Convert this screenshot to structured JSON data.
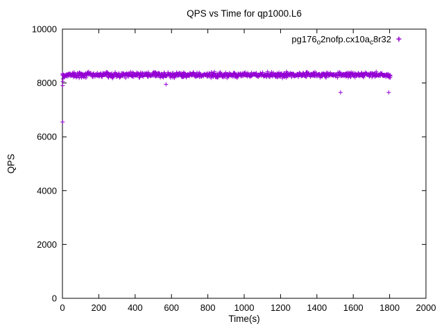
{
  "chart_data": {
    "type": "scatter",
    "title": "QPS vs Time for qp1000.L6",
    "xlabel": "Time(s)",
    "ylabel": "QPS",
    "xlim": [
      0,
      2000
    ],
    "ylim": [
      0,
      10000
    ],
    "xticks": [
      0,
      200,
      400,
      600,
      800,
      1000,
      1200,
      1400,
      1600,
      1800,
      2000
    ],
    "yticks": [
      0,
      2000,
      4000,
      6000,
      8000,
      10000
    ],
    "grid": false,
    "legend_position": "top-right",
    "series": [
      {
        "name": "pg176_o2nofp.cx10a_c8r32",
        "label_segments": [
          {
            "text": "pg176",
            "sub": false
          },
          {
            "text": "o",
            "sub": true
          },
          {
            "text": "2nofp.cx10a",
            "sub": false
          },
          {
            "text": "c",
            "sub": true
          },
          {
            "text": "8r32",
            "sub": false
          }
        ],
        "marker": "plus",
        "color": "#9400d3",
        "band": {
          "x_start": 0,
          "x_end": 1805,
          "mean": 8300,
          "jitter": 140,
          "n_points": 950,
          "seed": 42
        },
        "outliers": [
          [
            1,
            6550
          ],
          [
            1,
            7900
          ],
          [
            2,
            8050
          ],
          [
            3,
            8150
          ],
          [
            570,
            7950
          ],
          [
            1530,
            7650
          ],
          [
            1795,
            7650
          ]
        ]
      }
    ],
    "colors": {
      "series": "#9400d3",
      "axis": "#000000",
      "background": "#ffffff"
    }
  }
}
